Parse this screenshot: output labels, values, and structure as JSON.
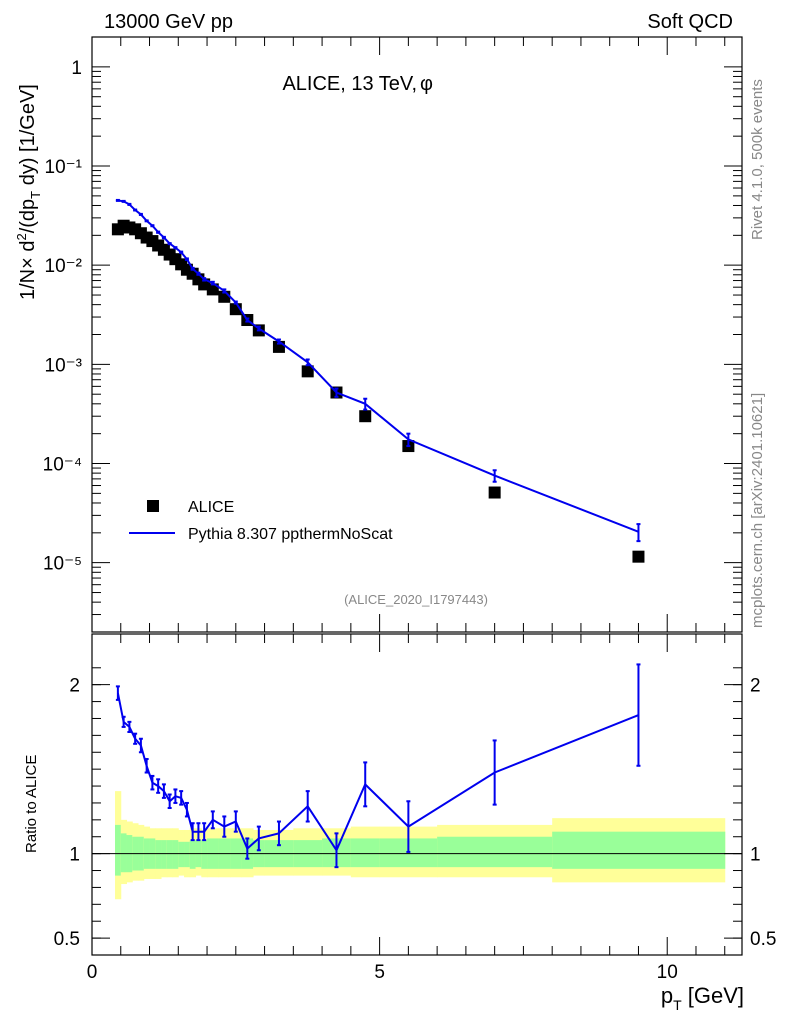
{
  "header": {
    "left": "13000 GeV pp",
    "right": "Soft QCD"
  },
  "side": {
    "rivet": "Rivet 4.1.0,  500k events",
    "url": "mcplots.cern.ch [arXiv:2401.10621]"
  },
  "colors": {
    "data": "#000000",
    "mc": "#0000ee",
    "band_inner": "#99ff99",
    "band_outer": "#ffff99"
  },
  "chart_data": [
    {
      "type": "scatter",
      "panel": "main",
      "title": "ALICE, 13 TeV,",
      "title_symbol": "φ",
      "ylabel": "1/N× d²/(dp_T dy) [1/GeV]",
      "yscale": "log",
      "ylim": [
        2e-06,
        2
      ],
      "xlim": [
        0,
        11.3
      ],
      "ytick_labels": [
        "1",
        "10⁻¹",
        "10⁻²",
        "10⁻³",
        "10⁻⁴",
        "10⁻⁵"
      ],
      "analysis_id": "(ALICE_2020_I1797443)",
      "legend": [
        "ALICE",
        "Pythia 8.307 ppthermNoScat"
      ],
      "legend_position": "bottom-left",
      "series": [
        {
          "name": "ALICE",
          "marker": "square",
          "x": [
            0.45,
            0.55,
            0.65,
            0.75,
            0.85,
            0.95,
            1.05,
            1.15,
            1.25,
            1.35,
            1.45,
            1.55,
            1.65,
            1.75,
            1.85,
            1.95,
            2.1,
            2.3,
            2.5,
            2.7,
            2.9,
            3.25,
            3.75,
            4.25,
            4.75,
            5.5,
            7.0,
            9.5
          ],
          "y": [
            0.023,
            0.025,
            0.024,
            0.023,
            0.021,
            0.019,
            0.0175,
            0.0158,
            0.0143,
            0.0128,
            0.0115,
            0.0102,
            0.009,
            0.0082,
            0.0072,
            0.0064,
            0.0057,
            0.0048,
            0.0036,
            0.0028,
            0.0022,
            0.0015,
            0.00085,
            0.00052,
            0.0003,
            0.00015,
            5.1e-05,
            1.15e-05
          ]
        },
        {
          "name": "Pythia 8.307 ppthermNoScat",
          "marker": "line",
          "x": [
            0.45,
            0.55,
            0.65,
            0.75,
            0.85,
            0.95,
            1.05,
            1.15,
            1.25,
            1.35,
            1.45,
            1.55,
            1.65,
            1.75,
            1.85,
            1.95,
            2.1,
            2.3,
            2.5,
            2.7,
            2.9,
            3.25,
            3.75,
            4.25,
            4.75,
            5.5,
            7.0,
            9.5
          ],
          "y": [
            0.045,
            0.044,
            0.041,
            0.036,
            0.0325,
            0.028,
            0.025,
            0.0215,
            0.019,
            0.0165,
            0.015,
            0.0135,
            0.0115,
            0.0092,
            0.0082,
            0.0072,
            0.0066,
            0.0055,
            0.0042,
            0.0028,
            0.0023,
            0.0017,
            0.00105,
            0.00052,
            0.0004,
            0.000175,
            7.55e-05,
            2.05e-05
          ],
          "yerr": [
            0.0005,
            0.0005,
            0.0005,
            0.0004,
            0.0004,
            0.0003,
            0.0003,
            0.0003,
            0.0003,
            0.0002,
            0.0002,
            0.0002,
            0.0002,
            0.0002,
            0.0002,
            0.0002,
            0.0002,
            0.0002,
            0.0001,
            0.0001,
            0.0001,
            8e-05,
            7e-05,
            5e-05,
            5e-05,
            2.5e-05,
            1e-05,
            4e-06
          ]
        }
      ]
    },
    {
      "type": "line",
      "panel": "ratio",
      "ylabel": "Ratio to ALICE",
      "xlabel": "p_T [GeV]",
      "ylim": [
        0.4,
        2.3
      ],
      "xlim": [
        0,
        11.3
      ],
      "yticks": [
        0.5,
        1,
        2
      ],
      "ytick_labels": [
        "0.5",
        "1",
        "2"
      ],
      "xticks": [
        0,
        5,
        10
      ],
      "xtick_labels": [
        "0",
        "5",
        "10"
      ],
      "series": [
        {
          "name": "Pythia 8.307 ppthermNoScat / ALICE",
          "x": [
            0.45,
            0.55,
            0.65,
            0.75,
            0.85,
            0.95,
            1.05,
            1.15,
            1.25,
            1.35,
            1.45,
            1.55,
            1.65,
            1.75,
            1.85,
            1.95,
            2.1,
            2.3,
            2.5,
            2.7,
            2.9,
            3.25,
            3.75,
            4.25,
            4.75,
            5.5,
            7.0,
            9.5
          ],
          "y": [
            1.95,
            1.78,
            1.75,
            1.68,
            1.64,
            1.52,
            1.42,
            1.4,
            1.37,
            1.31,
            1.34,
            1.33,
            1.26,
            1.13,
            1.13,
            1.13,
            1.2,
            1.16,
            1.19,
            1.03,
            1.09,
            1.12,
            1.28,
            1.02,
            1.41,
            1.16,
            1.48,
            1.82
          ],
          "yerr": [
            0.04,
            0.03,
            0.03,
            0.03,
            0.04,
            0.04,
            0.04,
            0.04,
            0.04,
            0.04,
            0.04,
            0.04,
            0.04,
            0.05,
            0.05,
            0.05,
            0.05,
            0.06,
            0.06,
            0.06,
            0.07,
            0.07,
            0.09,
            0.1,
            0.13,
            0.15,
            0.19,
            0.3
          ]
        },
        {
          "name": "ALICE uncertainty bands",
          "x_edges": [
            0.4,
            0.5,
            0.6,
            0.7,
            0.8,
            0.9,
            1.0,
            1.1,
            1.2,
            1.3,
            1.4,
            1.5,
            1.6,
            1.7,
            1.8,
            1.9,
            2.0,
            2.2,
            2.4,
            2.6,
            2.8,
            3.0,
            3.5,
            4.0,
            4.5,
            5.0,
            6.0,
            8.0,
            11.0
          ],
          "inner_lo": [
            0.87,
            0.89,
            0.89,
            0.9,
            0.9,
            0.91,
            0.91,
            0.91,
            0.91,
            0.91,
            0.91,
            0.92,
            0.92,
            0.91,
            0.92,
            0.91,
            0.91,
            0.91,
            0.91,
            0.91,
            0.92,
            0.92,
            0.92,
            0.92,
            0.92,
            0.92,
            0.92,
            0.91
          ],
          "inner_hi": [
            1.17,
            1.12,
            1.11,
            1.1,
            1.1,
            1.09,
            1.09,
            1.08,
            1.08,
            1.08,
            1.08,
            1.07,
            1.07,
            1.08,
            1.08,
            1.08,
            1.09,
            1.09,
            1.09,
            1.09,
            1.08,
            1.08,
            1.08,
            1.09,
            1.09,
            1.09,
            1.1,
            1.13
          ],
          "outer_lo": [
            0.73,
            0.82,
            0.83,
            0.84,
            0.84,
            0.85,
            0.85,
            0.85,
            0.86,
            0.86,
            0.86,
            0.87,
            0.86,
            0.86,
            0.87,
            0.86,
            0.86,
            0.86,
            0.86,
            0.86,
            0.87,
            0.87,
            0.87,
            0.87,
            0.86,
            0.86,
            0.86,
            0.83
          ],
          "outer_hi": [
            1.37,
            1.2,
            1.19,
            1.18,
            1.17,
            1.16,
            1.15,
            1.15,
            1.15,
            1.15,
            1.15,
            1.14,
            1.14,
            1.15,
            1.15,
            1.14,
            1.15,
            1.15,
            1.15,
            1.15,
            1.14,
            1.14,
            1.15,
            1.15,
            1.16,
            1.16,
            1.17,
            1.21
          ]
        }
      ]
    }
  ]
}
